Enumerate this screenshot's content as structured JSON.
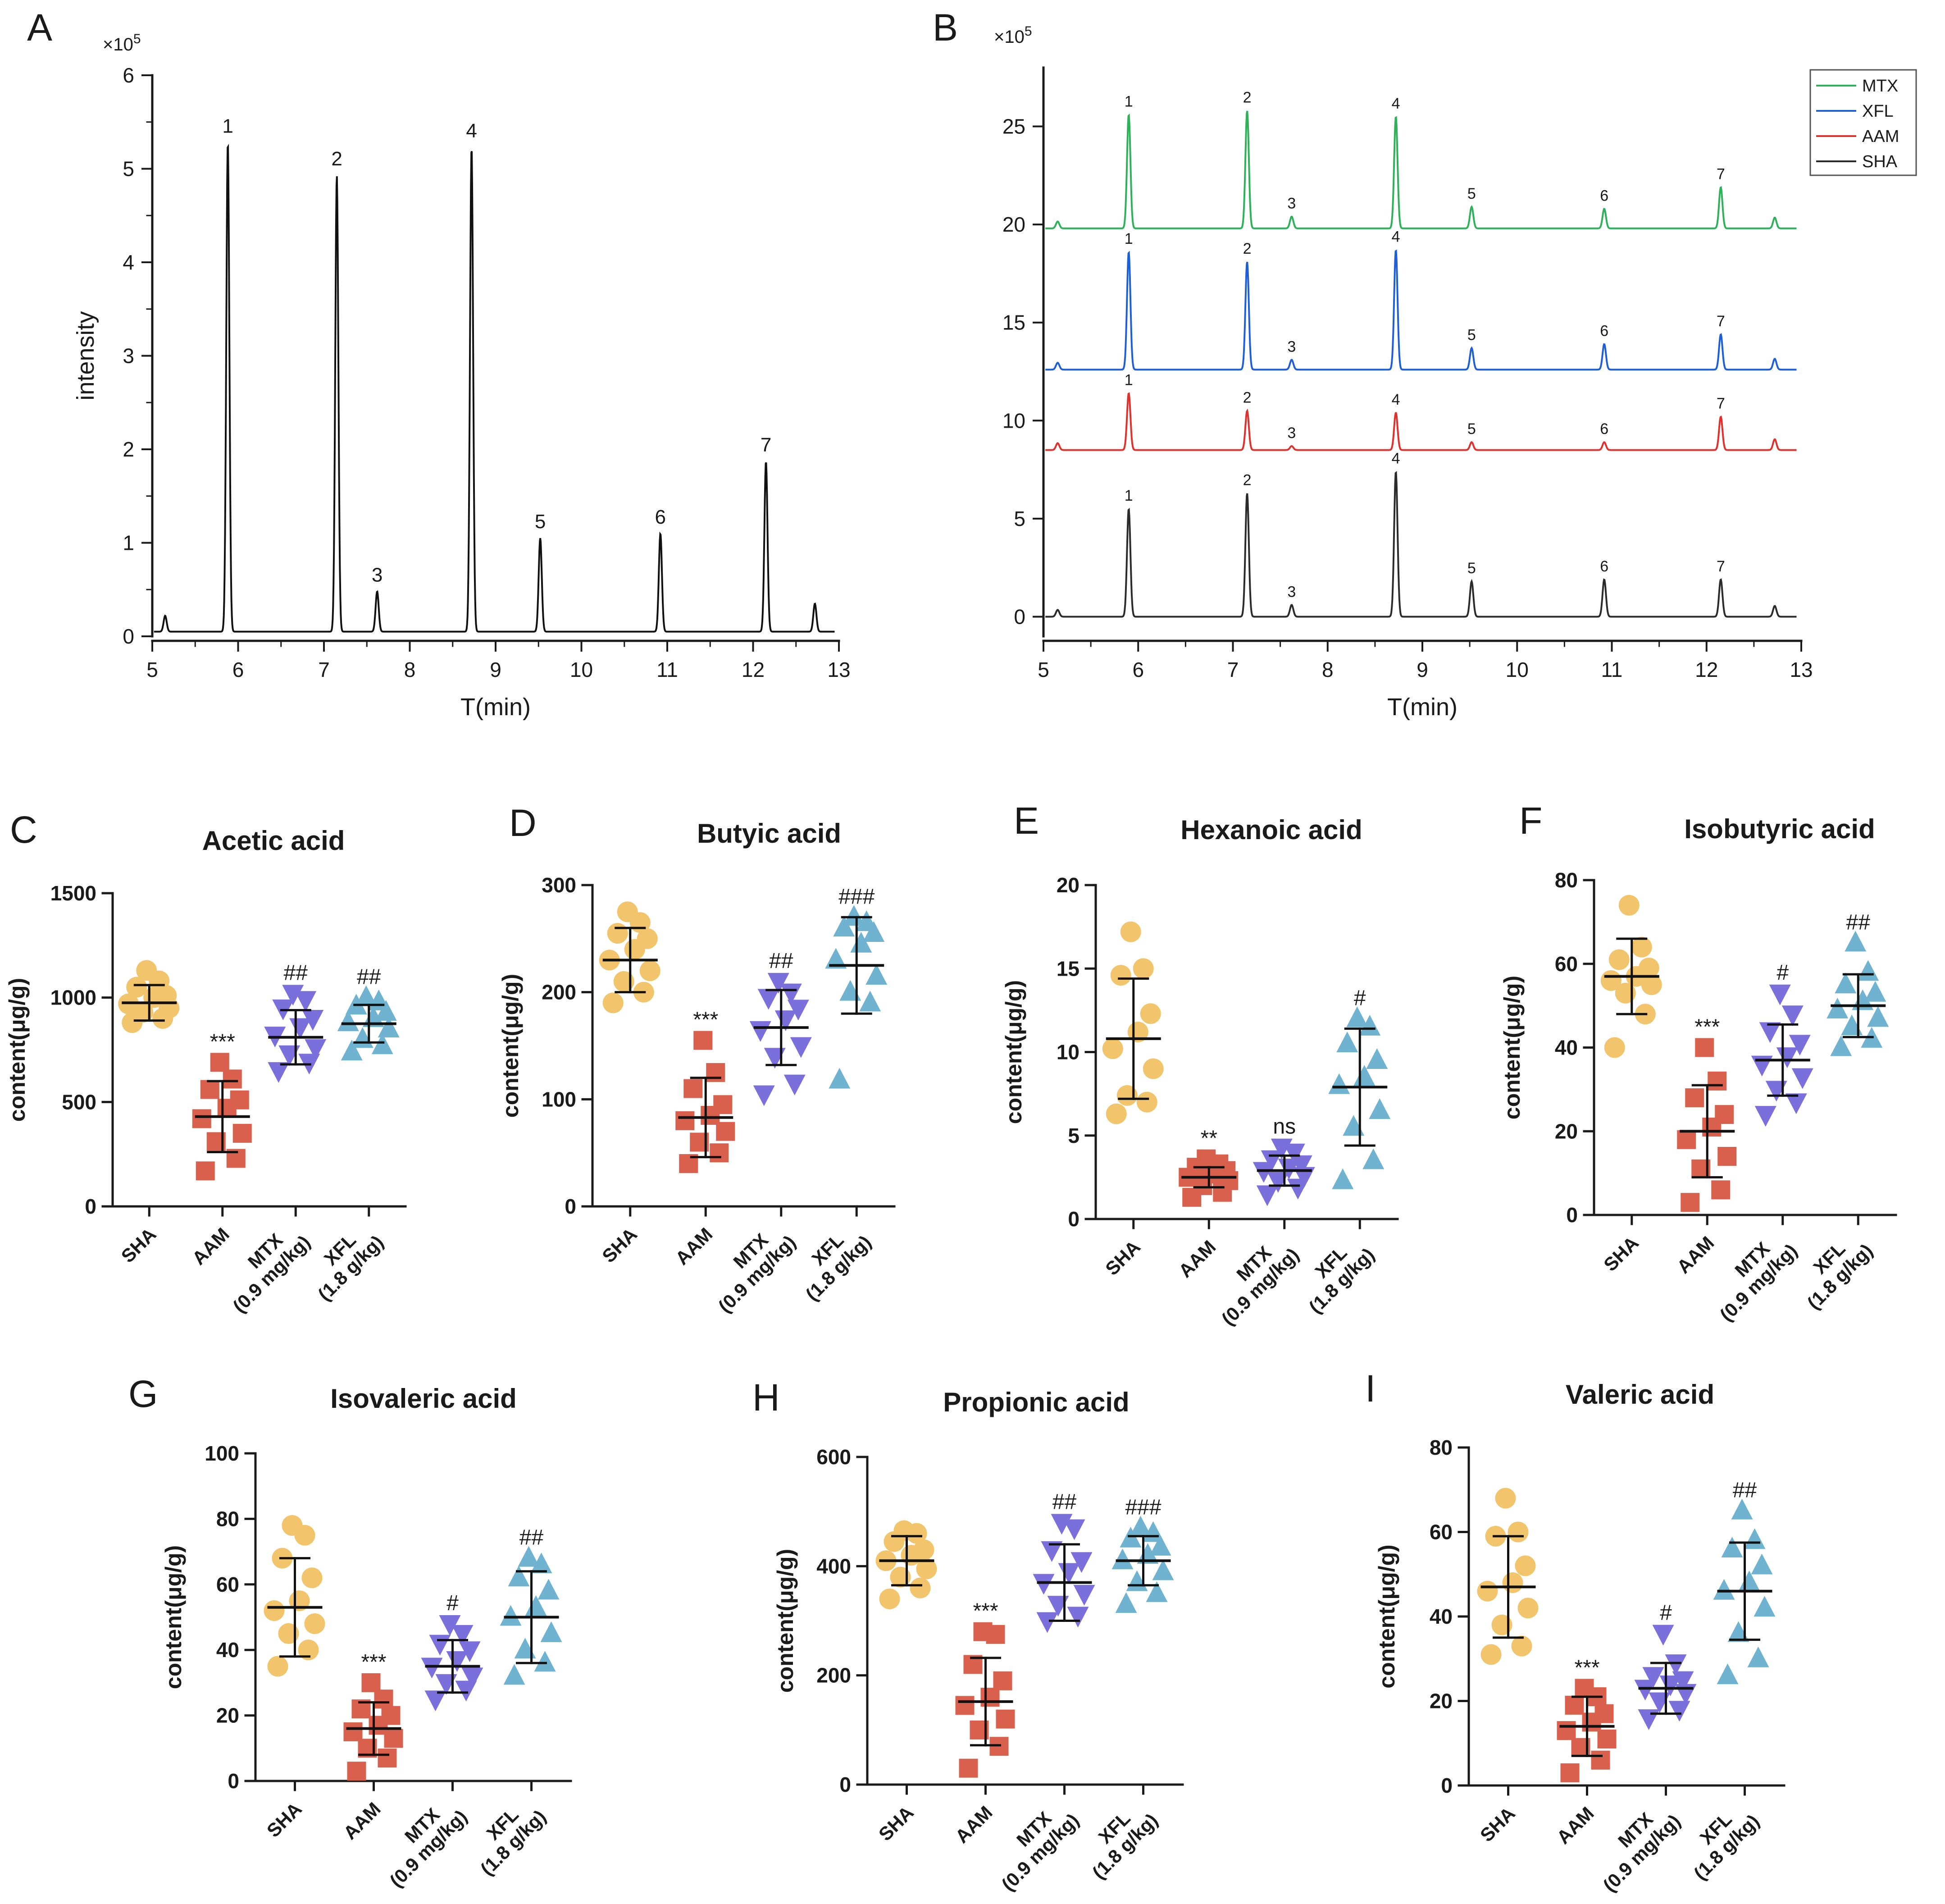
{
  "colors": {
    "SHA": "#f2c46b",
    "AAM": "#d9604c",
    "MTX": "#7b6fdc",
    "XFL": "#6fb3d0",
    "trace_MTX": "#2fb15a",
    "trace_XFL": "#1f5fd6",
    "trace_AAM": "#e0322c",
    "trace_SHA": "#2b2b2b",
    "axis": "#1a1a1a"
  },
  "chart_data": [
    {
      "id": "A",
      "panel_label": "A",
      "type": "line",
      "title": "",
      "xlabel": "T(min)",
      "ylabel": "intensity",
      "y_multiplier": "×10",
      "y_multiplier_exp": "5",
      "xlim": [
        5,
        13
      ],
      "ylim": [
        0,
        6
      ],
      "xticks": [
        "5",
        "6",
        "7",
        "8",
        "9",
        "10",
        "11",
        "12",
        "13"
      ],
      "yticks": [
        "0",
        "1",
        "2",
        "3",
        "4",
        "5",
        "6"
      ],
      "baseline": 0.05,
      "peaks": [
        {
          "label": "1",
          "x": 5.88,
          "y": 5.28
        },
        {
          "label": "2",
          "x": 7.15,
          "y": 4.93
        },
        {
          "label": "3",
          "x": 7.62,
          "y": 0.48
        },
        {
          "label": "4",
          "x": 8.72,
          "y": 5.23
        },
        {
          "label": "5",
          "x": 9.52,
          "y": 1.05
        },
        {
          "label": "6",
          "x": 10.92,
          "y": 1.1
        },
        {
          "label": "7",
          "x": 12.15,
          "y": 1.87
        }
      ],
      "minor_peaks": [
        {
          "x": 5.15,
          "y": 0.22
        },
        {
          "x": 12.72,
          "y": 0.35
        }
      ]
    },
    {
      "id": "B",
      "panel_label": "B",
      "type": "line",
      "title": "",
      "xlabel": "T(min)",
      "ylabel": "",
      "y_multiplier": "×10",
      "y_multiplier_exp": "5",
      "xlim": [
        5,
        13
      ],
      "ylim": [
        -1,
        28
      ],
      "xticks": [
        "5",
        "6",
        "7",
        "8",
        "9",
        "10",
        "11",
        "12",
        "13"
      ],
      "yticks": [
        "0",
        "5",
        "10",
        "15",
        "20",
        "25"
      ],
      "legend": [
        "MTX",
        "XFL",
        "AAM",
        "SHA"
      ],
      "legend_position": "top-right",
      "series": [
        {
          "name": "MTX",
          "baseline": 19.8,
          "peaks": [
            {
              "label": "1",
              "x": 5.9,
              "y": 25.6
            },
            {
              "label": "2",
              "x": 7.15,
              "y": 25.8
            },
            {
              "label": "3",
              "x": 7.62,
              "y": 20.4
            },
            {
              "label": "4",
              "x": 8.72,
              "y": 25.5
            },
            {
              "label": "5",
              "x": 9.52,
              "y": 20.9
            },
            {
              "label": "6",
              "x": 10.92,
              "y": 20.8
            },
            {
              "label": "7",
              "x": 12.15,
              "y": 21.9
            }
          ]
        },
        {
          "name": "XFL",
          "baseline": 12.6,
          "peaks": [
            {
              "label": "1",
              "x": 5.9,
              "y": 18.6
            },
            {
              "label": "2",
              "x": 7.15,
              "y": 18.1
            },
            {
              "label": "3",
              "x": 7.62,
              "y": 13.1
            },
            {
              "label": "4",
              "x": 8.72,
              "y": 18.7
            },
            {
              "label": "5",
              "x": 9.52,
              "y": 13.7
            },
            {
              "label": "6",
              "x": 10.92,
              "y": 13.9
            },
            {
              "label": "7",
              "x": 12.15,
              "y": 14.4
            }
          ]
        },
        {
          "name": "AAM",
          "baseline": 8.5,
          "peaks": [
            {
              "label": "1",
              "x": 5.9,
              "y": 11.4
            },
            {
              "label": "2",
              "x": 7.15,
              "y": 10.5
            },
            {
              "label": "3",
              "x": 7.62,
              "y": 8.7
            },
            {
              "label": "4",
              "x": 8.72,
              "y": 10.4
            },
            {
              "label": "5",
              "x": 9.52,
              "y": 8.9
            },
            {
              "label": "6",
              "x": 10.92,
              "y": 8.9
            },
            {
              "label": "7",
              "x": 12.15,
              "y": 10.2
            }
          ]
        },
        {
          "name": "SHA",
          "baseline": 0.0,
          "peaks": [
            {
              "label": "1",
              "x": 5.9,
              "y": 5.5
            },
            {
              "label": "2",
              "x": 7.15,
              "y": 6.3
            },
            {
              "label": "3",
              "x": 7.62,
              "y": 0.6
            },
            {
              "label": "4",
              "x": 8.72,
              "y": 7.4
            },
            {
              "label": "5",
              "x": 9.52,
              "y": 1.8
            },
            {
              "label": "6",
              "x": 10.92,
              "y": 1.9
            },
            {
              "label": "7",
              "x": 12.15,
              "y": 1.9
            }
          ]
        }
      ]
    },
    {
      "id": "C",
      "panel_label": "C",
      "type": "scatter",
      "title": "Acetic acid",
      "ylabel": "content(μg/g)",
      "ylim": [
        0,
        1500
      ],
      "yticks": [
        "0",
        "500",
        "1000",
        "1500"
      ],
      "categories": [
        "SHA",
        "AAM",
        "MTX (0.9 mg/kg)",
        "XFL (1.8 g/kg)"
      ],
      "category_lines": [
        [
          "SHA"
        ],
        [
          "AAM"
        ],
        [
          "MTX",
          "(0.9 mg/kg)"
        ],
        [
          "XFL",
          "(1.8 g/kg)"
        ]
      ],
      "groups": [
        {
          "name": "SHA",
          "mean": 975,
          "sd": 85,
          "annotation": "",
          "points": [
            880,
            900,
            930,
            950,
            970,
            1000,
            1010,
            1050,
            1080,
            1130
          ]
        },
        {
          "name": "AAM",
          "mean": 430,
          "sd": 170,
          "annotation": "***",
          "points": [
            170,
            230,
            310,
            350,
            420,
            470,
            510,
            560,
            610,
            690
          ]
        },
        {
          "name": "MTX",
          "mean": 810,
          "sd": 130,
          "annotation": "##",
          "points": [
            650,
            690,
            730,
            760,
            820,
            860,
            900,
            950,
            990,
            1020
          ]
        },
        {
          "name": "XFL",
          "mean": 875,
          "sd": 90,
          "annotation": "##",
          "points": [
            740,
            770,
            800,
            850,
            880,
            900,
            930,
            960,
            980,
            1000
          ]
        }
      ]
    },
    {
      "id": "D",
      "panel_label": "D",
      "type": "scatter",
      "title": "Butyic acid",
      "ylabel": "content(μg/g)",
      "ylim": [
        0,
        300
      ],
      "yticks": [
        "0",
        "100",
        "200",
        "300"
      ],
      "categories": [
        "SHA",
        "AAM",
        "MTX (0.9 mg/kg)",
        "XFL (1.8 g/kg)"
      ],
      "category_lines": [
        [
          "SHA"
        ],
        [
          "AAM"
        ],
        [
          "MTX",
          "(0.9 mg/kg)"
        ],
        [
          "XFL",
          "(1.8 g/kg)"
        ]
      ],
      "groups": [
        {
          "name": "SHA",
          "mean": 230,
          "sd": 30,
          "annotation": "",
          "points": [
            190,
            200,
            210,
            220,
            230,
            240,
            250,
            255,
            265,
            275
          ]
        },
        {
          "name": "AAM",
          "mean": 83,
          "sd": 37,
          "annotation": "***",
          "points": [
            40,
            50,
            60,
            70,
            80,
            85,
            95,
            110,
            125,
            155
          ]
        },
        {
          "name": "MTX",
          "mean": 167,
          "sd": 35,
          "annotation": "##",
          "points": [
            105,
            115,
            140,
            150,
            165,
            175,
            185,
            195,
            200,
            210
          ]
        },
        {
          "name": "XFL",
          "mean": 225,
          "sd": 45,
          "annotation": "###",
          "points": [
            118,
            190,
            200,
            215,
            230,
            245,
            255,
            260,
            265,
            270
          ]
        }
      ]
    },
    {
      "id": "E",
      "panel_label": "E",
      "type": "scatter",
      "title": "Hexanoic acid",
      "ylabel": "content(μg/g)",
      "ylim": [
        0,
        20
      ],
      "yticks": [
        "0",
        "5",
        "10",
        "15",
        "20"
      ],
      "categories": [
        "SHA",
        "AAM",
        "MTX (0.9 mg/kg)",
        "XFL (1.8 g/kg)"
      ],
      "category_lines": [
        [
          "SHA"
        ],
        [
          "AAM"
        ],
        [
          "MTX",
          "(0.9 mg/kg)"
        ],
        [
          "XFL",
          "(1.8 g/kg)"
        ]
      ],
      "groups": [
        {
          "name": "SHA",
          "mean": 10.8,
          "sd": 3.6,
          "annotation": "",
          "points": [
            6.3,
            7.0,
            7.4,
            9.0,
            10.2,
            11.2,
            12.3,
            14.6,
            15.0,
            17.2
          ]
        },
        {
          "name": "AAM",
          "mean": 2.5,
          "sd": 0.6,
          "annotation": "**",
          "points": [
            1.3,
            1.6,
            2.0,
            2.3,
            2.5,
            2.7,
            2.9,
            3.1,
            3.3,
            3.6
          ]
        },
        {
          "name": "MTX",
          "mean": 2.9,
          "sd": 0.9,
          "annotation": "ns",
          "points": [
            1.5,
            1.9,
            2.3,
            2.6,
            2.9,
            3.1,
            3.3,
            3.6,
            4.0,
            4.3
          ]
        },
        {
          "name": "XFL",
          "mean": 7.9,
          "sd": 3.5,
          "annotation": "#",
          "points": [
            2.3,
            3.5,
            5.5,
            6.5,
            8.0,
            8.5,
            9.5,
            10.5,
            11.5,
            12.0
          ]
        }
      ]
    },
    {
      "id": "F",
      "panel_label": "F",
      "type": "scatter",
      "title": "Isobutyric acid",
      "ylabel": "content(μg/g)",
      "ylim": [
        0,
        80
      ],
      "yticks": [
        "0",
        "20",
        "40",
        "60",
        "80"
      ],
      "categories": [
        "SHA",
        "AAM",
        "MTX (0.9 mg/kg)",
        "XFL (1.8 g/kg)"
      ],
      "category_lines": [
        [
          "SHA"
        ],
        [
          "AAM"
        ],
        [
          "MTX",
          "(0.9 mg/kg)"
        ],
        [
          "XFL",
          "(1.8 g/kg)"
        ]
      ],
      "groups": [
        {
          "name": "SHA",
          "mean": 57,
          "sd": 9,
          "annotation": "",
          "points": [
            40,
            48,
            53,
            55,
            56,
            57,
            59,
            61,
            64,
            74
          ]
        },
        {
          "name": "AAM",
          "mean": 20,
          "sd": 11,
          "annotation": "***",
          "points": [
            3,
            6,
            11,
            14,
            18,
            21,
            24,
            28,
            32,
            40
          ]
        },
        {
          "name": "MTX",
          "mean": 37,
          "sd": 8.5,
          "annotation": "#",
          "points": [
            24,
            27,
            30,
            33,
            36,
            38,
            41,
            44,
            48,
            53
          ]
        },
        {
          "name": "XFL",
          "mean": 50,
          "sd": 7.5,
          "annotation": "##",
          "points": [
            40,
            42,
            45,
            47,
            49,
            51,
            53,
            55,
            58,
            65
          ]
        }
      ]
    },
    {
      "id": "G",
      "panel_label": "G",
      "type": "scatter",
      "title": "Isovaleric acid",
      "ylabel": "content(μg/g)",
      "ylim": [
        0,
        100
      ],
      "yticks": [
        "0",
        "20",
        "40",
        "60",
        "80",
        "100"
      ],
      "categories": [
        "SHA",
        "AAM",
        "MTX (0.9 mg/kg)",
        "XFL (1.8 g/kg)"
      ],
      "category_lines": [
        [
          "SHA"
        ],
        [
          "AAM"
        ],
        [
          "MTX",
          "(0.9 mg/kg)"
        ],
        [
          "XFL",
          "(1.8 g/kg)"
        ]
      ],
      "groups": [
        {
          "name": "SHA",
          "mean": 53,
          "sd": 15,
          "annotation": "",
          "points": [
            35,
            40,
            45,
            48,
            52,
            55,
            62,
            68,
            75,
            78
          ]
        },
        {
          "name": "AAM",
          "mean": 16,
          "sd": 8,
          "annotation": "***",
          "points": [
            3,
            7,
            10,
            13,
            15,
            17,
            20,
            22,
            25,
            30
          ]
        },
        {
          "name": "MTX",
          "mean": 35,
          "sd": 8,
          "annotation": "#",
          "points": [
            25,
            28,
            30,
            32,
            35,
            37,
            40,
            42,
            45,
            48
          ]
        },
        {
          "name": "XFL",
          "mean": 50,
          "sd": 14,
          "annotation": "##",
          "points": [
            32,
            36,
            40,
            45,
            50,
            53,
            58,
            62,
            66,
            68
          ]
        }
      ]
    },
    {
      "id": "H",
      "panel_label": "H",
      "type": "scatter",
      "title": "Propionic acid",
      "ylabel": "content(μg/g)",
      "ylim": [
        0,
        600
      ],
      "yticks": [
        "0",
        "200",
        "400",
        "600"
      ],
      "categories": [
        "SHA",
        "AAM",
        "MTX (0.9 mg/kg)",
        "XFL (1.8 g/kg)"
      ],
      "category_lines": [
        [
          "SHA"
        ],
        [
          "AAM"
        ],
        [
          "MTX",
          "(0.9 mg/kg)"
        ],
        [
          "XFL",
          "(1.8 g/kg)"
        ]
      ],
      "groups": [
        {
          "name": "SHA",
          "mean": 410,
          "sd": 45,
          "annotation": "",
          "points": [
            340,
            360,
            380,
            395,
            410,
            420,
            430,
            445,
            460,
            465
          ]
        },
        {
          "name": "AAM",
          "mean": 152,
          "sd": 80,
          "annotation": "***",
          "points": [
            30,
            70,
            100,
            120,
            145,
            160,
            190,
            220,
            275,
            280
          ]
        },
        {
          "name": "MTX",
          "mean": 370,
          "sd": 70,
          "annotation": "##",
          "points": [
            300,
            310,
            330,
            350,
            370,
            390,
            410,
            430,
            470,
            480
          ]
        },
        {
          "name": "XFL",
          "mean": 410,
          "sd": 45,
          "annotation": "###",
          "points": [
            330,
            350,
            370,
            390,
            410,
            420,
            435,
            450,
            460,
            470
          ]
        }
      ]
    },
    {
      "id": "I",
      "panel_label": "I",
      "type": "scatter",
      "title": "Valeric acid",
      "ylabel": "content(μg/g)",
      "ylim": [
        0,
        80
      ],
      "yticks": [
        "0",
        "20",
        "40",
        "60",
        "80"
      ],
      "categories": [
        "SHA",
        "AAM",
        "MTX (0.9 mg/kg)",
        "XFL (1.8 g/kg)"
      ],
      "category_lines": [
        [
          "SHA"
        ],
        [
          "AAM"
        ],
        [
          "MTX",
          "(0.9 mg/kg)"
        ],
        [
          "XFL",
          "(1.8 g/kg)"
        ]
      ],
      "groups": [
        {
          "name": "SHA",
          "mean": 47,
          "sd": 12,
          "annotation": "",
          "points": [
            31,
            33,
            38,
            42,
            46,
            48,
            52,
            59,
            60,
            68
          ]
        },
        {
          "name": "AAM",
          "mean": 14,
          "sd": 7,
          "annotation": "***",
          "points": [
            3,
            6,
            9,
            11,
            13,
            15,
            17,
            19,
            21,
            23
          ]
        },
        {
          "name": "MTX",
          "mean": 23,
          "sd": 6,
          "annotation": "#",
          "points": [
            16,
            18,
            20,
            22,
            23,
            24,
            25,
            26,
            29,
            36
          ]
        },
        {
          "name": "XFL",
          "mean": 46,
          "sd": 11.5,
          "annotation": "##",
          "points": [
            26,
            30,
            36,
            42,
            46,
            48,
            52,
            56,
            58,
            65
          ]
        }
      ]
    }
  ]
}
